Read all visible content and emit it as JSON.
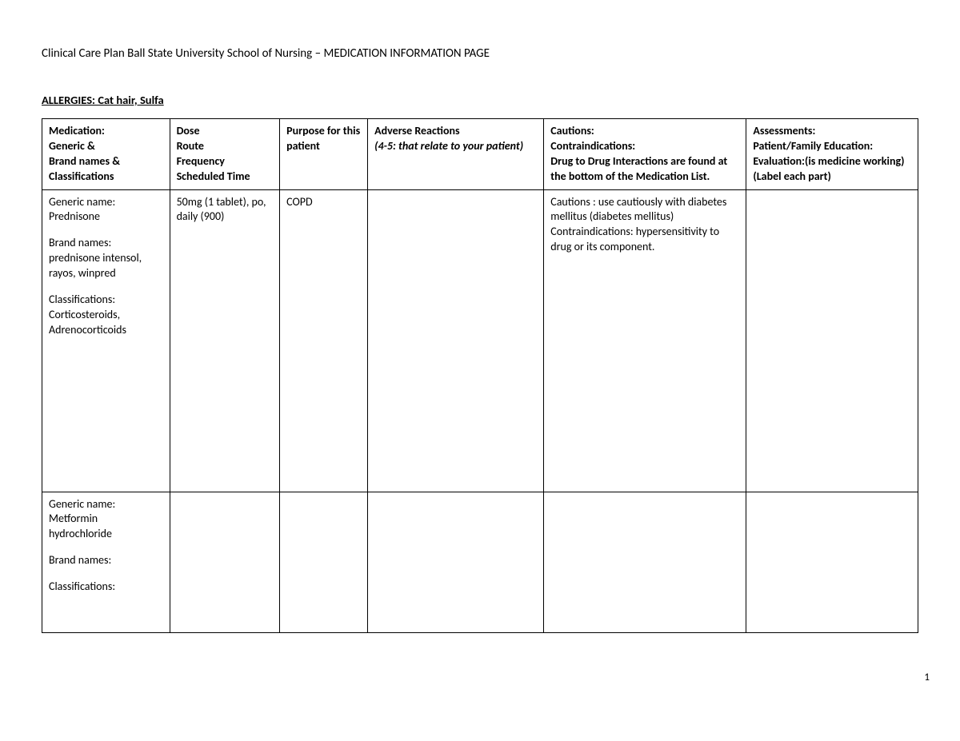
{
  "title": "Clinical Care Plan Ball State University School of Nursing – MEDICATION INFORMATION PAGE",
  "allergies_label": "ALLERGIES:  Cat hair, Sulfa",
  "page_number": "1",
  "columns": {
    "medication": "Medication:\nGeneric &\nBrand names &\nClassifications",
    "dose": "Dose\nRoute\nFrequency\nScheduled Time",
    "purpose": "Purpose for this patient",
    "adverse_prefix": "Adverse Reactions",
    "adverse_italic": "(4-5: that relate to your patient)",
    "cautions": "Cautions:\nContraindications:\nDrug to Drug Interactions are found at the bottom of the Medication List.",
    "assessments": "Assessments:\nPatient/Family Education:\nEvaluation:(is medicine working)\n(Label each part)"
  },
  "rows": [
    {
      "medication": {
        "generic_label": "Generic name:",
        "generic": "Prednisone",
        "brand_label": "Brand names:",
        "brand": "prednisone intensol, rayos, winpred",
        "class_label": "Classifications:",
        "class": "Corticosteroids, Adrenocorticoids"
      },
      "dose": "50mg (1 tablet), po, daily (900)",
      "purpose": "COPD",
      "adverse": "",
      "cautions": "Cautions : use cautiously with diabetes mellitus (diabetes mellitus)\nContraindications: hypersensitivity to drug or its component.",
      "assessments": ""
    },
    {
      "medication": {
        "generic_label": "Generic name:",
        "generic": "Metformin hydrochloride",
        "brand_label": "Brand names:",
        "brand": "",
        "class_label": "Classifications:",
        "class": ""
      },
      "dose": "",
      "purpose": "",
      "adverse": "",
      "cautions": "",
      "assessments": ""
    }
  ]
}
